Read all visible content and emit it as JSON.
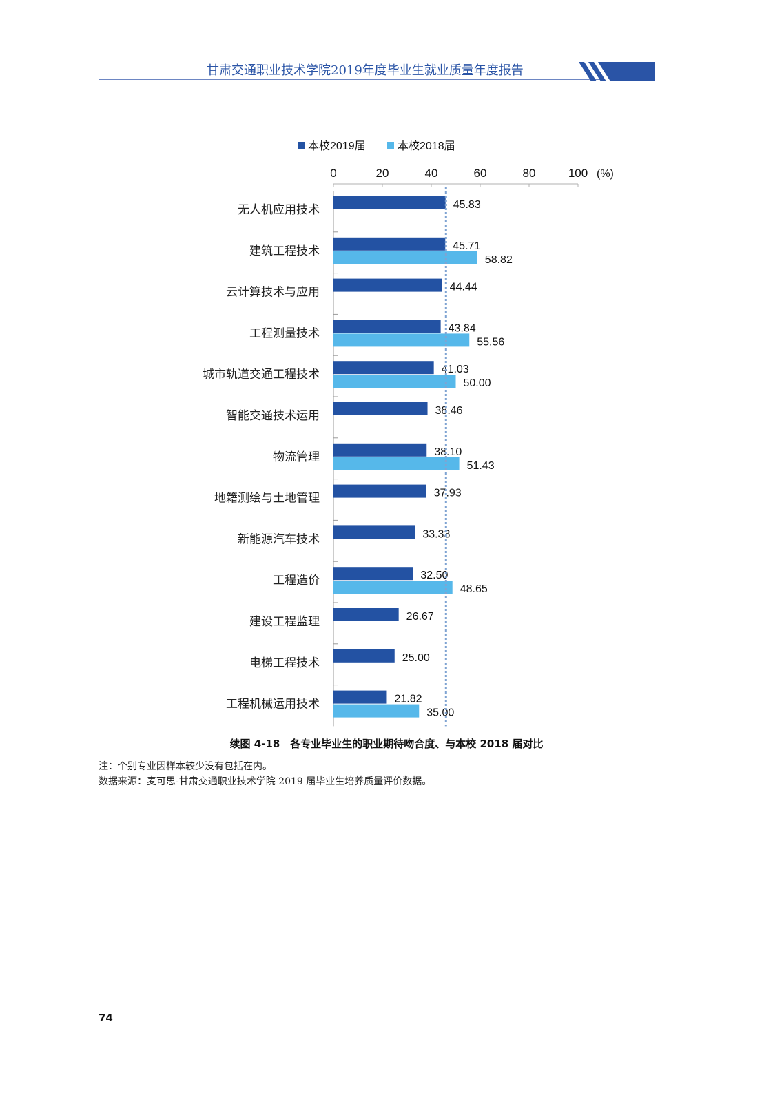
{
  "header": {
    "title": "甘肃交通职业技术学院2019年度毕业生就业质量年度报告"
  },
  "colors": {
    "series_2019": "#2352a3",
    "series_2018": "#56b8ea",
    "reference_line": "#7fa3d2",
    "header_blue": "#2a54a6"
  },
  "chart_data": {
    "type": "bar",
    "orientation": "horizontal",
    "unit_label": "(%)",
    "xlim": [
      0,
      100
    ],
    "x_ticks": [
      0,
      20,
      40,
      60,
      80,
      100
    ],
    "tick_labels": [
      "0",
      "20",
      "40",
      "60",
      "80",
      "100"
    ],
    "legend_position": "top",
    "reference_line_value": 46,
    "categories": [
      "无人机应用技术",
      "建筑工程技术",
      "云计算技术与应用",
      "工程测量技术",
      "城市轨道交通工程技术",
      "智能交通技术运用",
      "物流管理",
      "地籍测绘与土地管理",
      "新能源汽车技术",
      "工程造价",
      "建设工程监理",
      "电梯工程技术",
      "工程机械运用技术"
    ],
    "series": [
      {
        "name": "本校2019届",
        "values": [
          45.83,
          45.71,
          44.44,
          43.84,
          41.03,
          38.46,
          38.1,
          37.93,
          33.33,
          32.5,
          26.67,
          25.0,
          21.82
        ],
        "labels": [
          "45.83",
          "45.71",
          "44.44",
          "43.84",
          "41.03",
          "38.46",
          "38.10",
          "37.93",
          "33.33",
          "32.50",
          "26.67",
          "25.00",
          "21.82"
        ]
      },
      {
        "name": "本校2018届",
        "values": [
          null,
          58.82,
          null,
          55.56,
          50.0,
          null,
          51.43,
          null,
          null,
          48.65,
          null,
          null,
          35.0
        ],
        "labels": [
          null,
          "58.82",
          null,
          "55.56",
          "50.00",
          null,
          "51.43",
          null,
          null,
          "48.65",
          null,
          null,
          "35.00"
        ]
      }
    ]
  },
  "caption": "续图 4-18　各专业毕业生的职业期待吻合度、与本校 2018 届对比",
  "notes": {
    "note": "注：个别专业因样本较少没有包括在内。",
    "source": "数据来源：麦可思-甘肃交通职业技术学院 2019 届毕业生培养质量评价数据。"
  },
  "page_number": "74"
}
